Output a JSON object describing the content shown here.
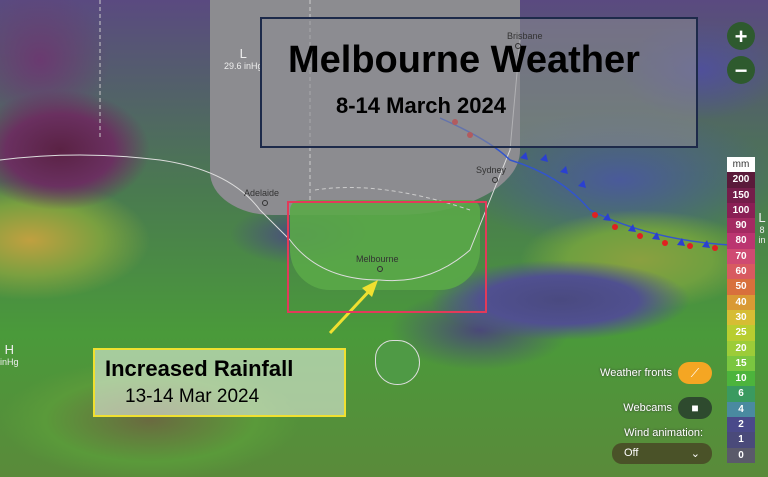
{
  "overlay": {
    "title": "Melbourne Weather",
    "subtitle": "8-14 March 2024",
    "rain_title": "Increased Rainfall",
    "rain_date": "13-14 Mar 2024"
  },
  "cities": {
    "brisbane": "Brisbane",
    "sydney": "Sydney",
    "adelaide": "Adelaide",
    "melbourne": "Melbourne"
  },
  "pressure": [
    {
      "symbol": "L",
      "value": "29.6 inHg"
    },
    {
      "symbol": "H",
      "value": "inHg"
    },
    {
      "symbol": "L",
      "value": "8 in"
    }
  ],
  "zoom": {
    "in": "+",
    "out": "−"
  },
  "legend": {
    "unit": "mm",
    "items": [
      {
        "label": "200",
        "color": "#5a1a3a"
      },
      {
        "label": "150",
        "color": "#741d4a"
      },
      {
        "label": "100",
        "color": "#8a1f55"
      },
      {
        "label": "90",
        "color": "#a42a62"
      },
      {
        "label": "80",
        "color": "#bb3570"
      },
      {
        "label": "70",
        "color": "#cf4a72"
      },
      {
        "label": "60",
        "color": "#d85a60"
      },
      {
        "label": "50",
        "color": "#d8703c"
      },
      {
        "label": "40",
        "color": "#d99a34"
      },
      {
        "label": "30",
        "color": "#d6bd34"
      },
      {
        "label": "25",
        "color": "#b8cd30"
      },
      {
        "label": "20",
        "color": "#9ccc38"
      },
      {
        "label": "15",
        "color": "#7ac640"
      },
      {
        "label": "10",
        "color": "#4cb43c"
      },
      {
        "label": "6",
        "color": "#3a9a60"
      },
      {
        "label": "4",
        "color": "#4a8aa0"
      },
      {
        "label": "2",
        "color": "#4a4a8a"
      },
      {
        "label": "1",
        "color": "#4a4a7a"
      },
      {
        "label": "0",
        "color": "#5a5a6a"
      }
    ]
  },
  "controls": {
    "weather_fronts": "Weather fronts",
    "webcams": "Webcams",
    "wind_animation": "Wind animation:",
    "wind_value": "Off",
    "fronts_color": "#f5a623",
    "webcams_color": "#2e4a2e"
  }
}
